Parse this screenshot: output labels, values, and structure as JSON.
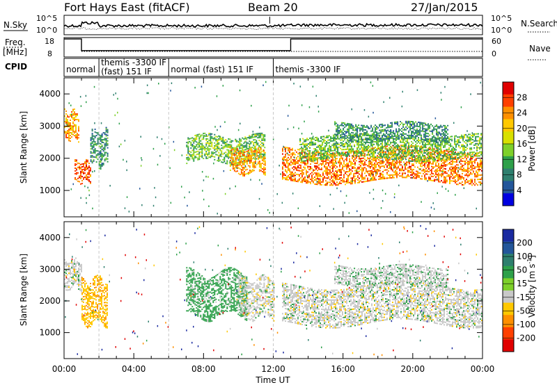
{
  "header": {
    "station": "Fort Hays East (fitACF)",
    "beam": "Beam 20",
    "date": "27/Jan/2015"
  },
  "status_panel": {
    "left_labels": {
      "nsky": "N.Sky",
      "freq_line1": "Freq.",
      "freq_line2": "[MHz]",
      "cpid": "CPID"
    },
    "right_labels": {
      "nsearch": "N.Search",
      "nave": "Nave"
    },
    "noise_ticks": [
      "10^5",
      "10^0"
    ],
    "noise_ticks_right": [
      "10^5",
      "10^0"
    ],
    "freq_ticks": [
      "18",
      "8"
    ],
    "nave_ticks": [
      "60",
      "0"
    ],
    "cpid_segments": [
      {
        "label": "normal",
        "start": 0.0,
        "end": 2.0
      },
      {
        "label": "themis -3300 IF",
        "label2": "(fast) 151 IF",
        "start": 2.0,
        "end": 6.0
      },
      {
        "label": "normal (fast) 151 IF",
        "start": 6.0,
        "end": 12.0
      },
      {
        "label": "themis -3300 IF",
        "start": 12.0,
        "end": 24.0
      }
    ],
    "freq_mhz": [
      {
        "start": 0.0,
        "end": 1.0,
        "value": 18
      },
      {
        "start": 1.0,
        "end": 13.0,
        "value": 11
      },
      {
        "start": 13.0,
        "end": 24.0,
        "value": 18
      }
    ]
  },
  "chart_data": [
    {
      "type": "heatmap",
      "parameter": "power",
      "ylabel": "Slant Range [km]",
      "xlabel": "Time UT",
      "xlim_hours": [
        0,
        24
      ],
      "ylim_km": [
        180,
        4500
      ],
      "yticks": [
        1000,
        2000,
        3000,
        4000
      ],
      "xticks": [
        "00:00",
        "04:00",
        "08:00",
        "12:00",
        "16:00",
        "20:00",
        "00:00"
      ],
      "colorbar": {
        "label": "Power [dB]",
        "ticks": [
          "28",
          "24",
          "20",
          "16",
          "12",
          "8",
          "4"
        ],
        "colors": [
          "#e00000",
          "#ff4000",
          "#ff9000",
          "#ffc800",
          "#d8e000",
          "#7ed02a",
          "#2ea04a",
          "#2e7f6e",
          "#23569a",
          "#0000e0"
        ]
      },
      "echo_regions": [
        {
          "t0": 0.0,
          "t1": 0.8,
          "r0": 2600,
          "r1": 3450,
          "power": 22
        },
        {
          "t0": 0.6,
          "t1": 1.5,
          "r0": 1280,
          "r1": 1900,
          "power": 26
        },
        {
          "t0": 1.5,
          "t1": 2.5,
          "r0": 1800,
          "r1": 2850,
          "power": 8
        },
        {
          "t0": 7.0,
          "t1": 11.5,
          "r0": 1900,
          "r1": 2700,
          "power": 12
        },
        {
          "t0": 9.5,
          "t1": 11.5,
          "r0": 1550,
          "r1": 2300,
          "power": 22
        },
        {
          "t0": 12.5,
          "t1": 24.0,
          "r0": 1300,
          "r1": 2300,
          "power": 24
        },
        {
          "t0": 13.5,
          "t1": 24.0,
          "r0": 2000,
          "r1": 2700,
          "power": 12
        },
        {
          "t0": 15.5,
          "t1": 22.0,
          "r0": 2550,
          "r1": 3100,
          "power": 8
        }
      ]
    },
    {
      "type": "heatmap",
      "parameter": "velocity",
      "ylabel": "Slant Range [km]",
      "xlabel": "Time UT",
      "xlim_hours": [
        0,
        24
      ],
      "ylim_km": [
        180,
        4500
      ],
      "yticks": [
        1000,
        2000,
        3000,
        4000
      ],
      "xticks": [
        "00:00",
        "04:00",
        "08:00",
        "12:00",
        "16:00",
        "20:00",
        "00:00"
      ],
      "colorbar": {
        "label": "Velocity [m s",
        "label_sup": "-1",
        "label_end": "]",
        "ticks": [
          "200",
          "100",
          "50",
          "15",
          "-15",
          "-50",
          "-100",
          "-200"
        ],
        "colors": [
          "#1a2aa0",
          "#23569a",
          "#2e7f6e",
          "#2ea04a",
          "#7ed02a",
          "#c8c8c8",
          "#ffc800",
          "#ff9000",
          "#ff4000",
          "#e00000"
        ]
      },
      "echo_regions": [
        {
          "t0": 0.0,
          "t1": 1.0,
          "r0": 2400,
          "r1": 3300,
          "velocity": 0
        },
        {
          "t0": 1.0,
          "t1": 2.5,
          "r0": 1300,
          "r1": 2700,
          "velocity": -40
        },
        {
          "t0": 7.0,
          "t1": 10.5,
          "r0": 1500,
          "r1": 2900,
          "velocity": 30
        },
        {
          "t0": 10.0,
          "t1": 12.0,
          "r0": 1500,
          "r1": 2700,
          "velocity": 0
        },
        {
          "t0": 12.5,
          "t1": 24.0,
          "r0": 1300,
          "r1": 2500,
          "velocity": 0
        },
        {
          "t0": 15.5,
          "t1": 22.0,
          "r0": 2500,
          "r1": 3100,
          "velocity": 5
        }
      ]
    }
  ]
}
